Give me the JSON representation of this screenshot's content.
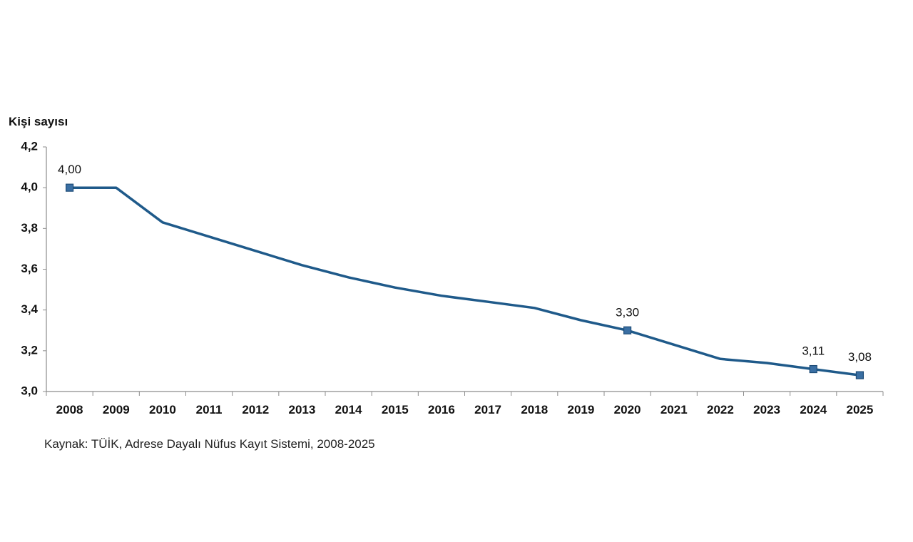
{
  "chart_data": {
    "type": "line",
    "ylabel": "Kişi sayısı",
    "source": "Kaynak: TÜİK, Adrese Dayalı Nüfus Kayıt Sistemi, 2008-2025",
    "x": [
      "2008",
      "2009",
      "2010",
      "2011",
      "2012",
      "2013",
      "2014",
      "2015",
      "2016",
      "2017",
      "2018",
      "2019",
      "2020",
      "2021",
      "2022",
      "2023",
      "2024",
      "2025"
    ],
    "series": [
      {
        "values": [
          4.0,
          4.0,
          3.83,
          3.76,
          3.69,
          3.62,
          3.56,
          3.51,
          3.47,
          3.44,
          3.41,
          3.35,
          3.3,
          3.23,
          3.16,
          3.14,
          3.11,
          3.08
        ],
        "color": "#1f5a8a",
        "marker_color": "#3a6fa3"
      }
    ],
    "ylim": [
      3.0,
      4.2
    ],
    "yticks": [
      "3,0",
      "3,2",
      "3,4",
      "3,6",
      "3,8",
      "4,0",
      "4,2"
    ],
    "ytick_values": [
      3.0,
      3.2,
      3.4,
      3.6,
      3.8,
      4.0,
      4.2
    ],
    "data_labels": [
      {
        "index": 0,
        "text": "4,00"
      },
      {
        "index": 12,
        "text": "3,30"
      },
      {
        "index": 16,
        "text": "3,11"
      },
      {
        "index": 17,
        "text": "3,08"
      }
    ],
    "grid": false,
    "legend": "none"
  }
}
